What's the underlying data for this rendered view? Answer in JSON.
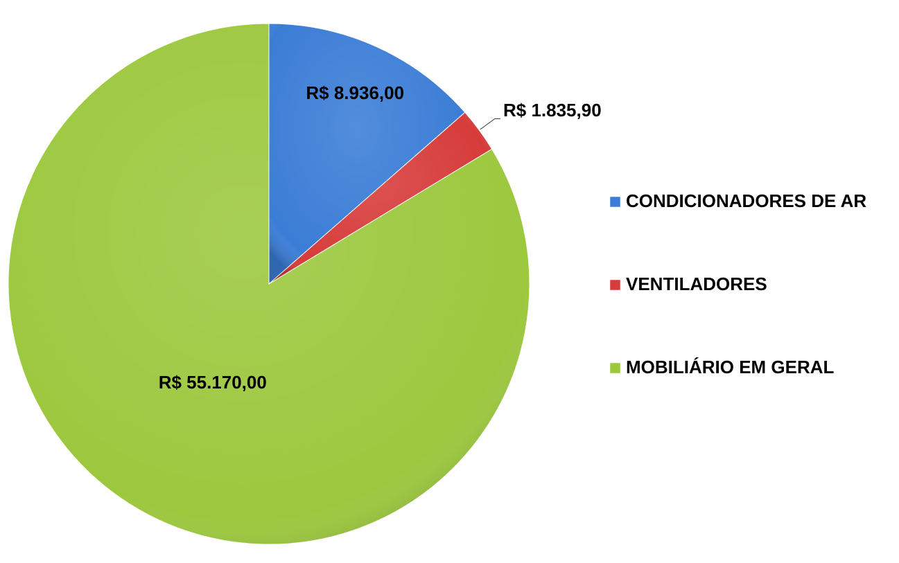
{
  "chart_data": {
    "type": "pie",
    "categories": [
      "CONDICIONADORES DE AR",
      "VENTILADORES",
      "MOBILIÁRIO EM GERAL"
    ],
    "values": [
      8936,
      1835.9,
      55170
    ],
    "value_labels": [
      "R$ 8.936,00",
      "R$ 1.835,90",
      "R$ 55.170,00"
    ],
    "colors": [
      "#3b7dd6",
      "#d63c3a",
      "#9cc83e"
    ],
    "legend": "right"
  }
}
